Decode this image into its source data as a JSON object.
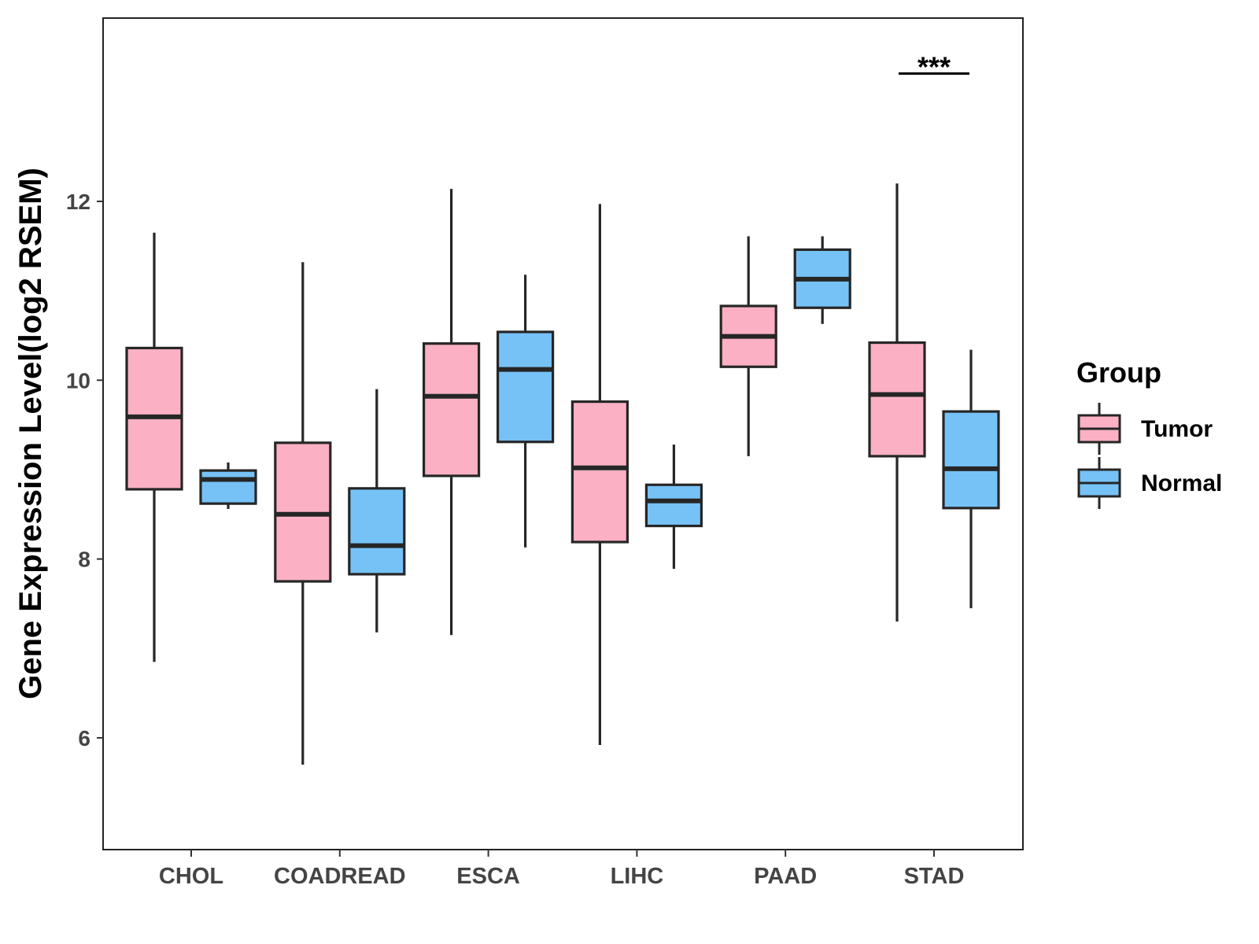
{
  "chart_data": {
    "type": "boxplot",
    "title": "",
    "xlabel": "",
    "ylabel": "Gene Expression Level(log2 RSEM)",
    "ylim": [
      4.75,
      14.05
    ],
    "yticks": [
      6,
      8,
      10,
      12
    ],
    "ytick_labels": [
      "6",
      "8",
      "10",
      "12"
    ],
    "grid": false,
    "categories": [
      "CHOL",
      "COADREAD",
      "ESCA",
      "LIHC",
      "PAAD",
      "STAD"
    ],
    "legend": {
      "title": "Group",
      "position": "right",
      "entries": [
        "Tumor",
        "Normal"
      ]
    },
    "series": [
      {
        "name": "Tumor",
        "color": "#FBB1C3",
        "boxes": [
          {
            "category": "CHOL",
            "whisker_low": 6.85,
            "q1": 8.78,
            "median": 9.59,
            "q3": 10.36,
            "whisker_high": 11.65
          },
          {
            "category": "COADREAD",
            "whisker_low": 5.7,
            "q1": 7.75,
            "median": 8.5,
            "q3": 9.3,
            "whisker_high": 11.32
          },
          {
            "category": "ESCA",
            "whisker_low": 7.15,
            "q1": 8.93,
            "median": 9.82,
            "q3": 10.41,
            "whisker_high": 12.14
          },
          {
            "category": "LIHC",
            "whisker_low": 5.92,
            "q1": 8.19,
            "median": 9.02,
            "q3": 9.76,
            "whisker_high": 11.97
          },
          {
            "category": "PAAD",
            "whisker_low": 9.15,
            "q1": 10.15,
            "median": 10.49,
            "q3": 10.83,
            "whisker_high": 11.61
          },
          {
            "category": "STAD",
            "whisker_low": 7.3,
            "q1": 9.15,
            "median": 9.84,
            "q3": 10.42,
            "whisker_high": 12.2
          }
        ]
      },
      {
        "name": "Normal",
        "color": "#76C2F7",
        "boxes": [
          {
            "category": "CHOL",
            "whisker_low": 8.56,
            "q1": 8.62,
            "median": 8.89,
            "q3": 8.99,
            "whisker_high": 9.08
          },
          {
            "category": "COADREAD",
            "whisker_low": 7.18,
            "q1": 7.83,
            "median": 8.15,
            "q3": 8.79,
            "whisker_high": 9.9
          },
          {
            "category": "ESCA",
            "whisker_low": 8.13,
            "q1": 9.31,
            "median": 10.12,
            "q3": 10.54,
            "whisker_high": 11.18
          },
          {
            "category": "LIHC",
            "whisker_low": 7.89,
            "q1": 8.37,
            "median": 8.65,
            "q3": 8.83,
            "whisker_high": 9.28
          },
          {
            "category": "PAAD",
            "whisker_low": 10.63,
            "q1": 10.81,
            "median": 11.13,
            "q3": 11.46,
            "whisker_high": 11.61
          },
          {
            "category": "STAD",
            "whisker_low": 7.45,
            "q1": 8.57,
            "median": 9.01,
            "q3": 9.65,
            "whisker_high": 10.34
          }
        ]
      }
    ],
    "annotations": [
      {
        "category": "STAD",
        "text": "***",
        "y": 13.43
      }
    ]
  },
  "colors": {
    "outline": "#262626",
    "frame": "#000000",
    "background": "#FFFFFF"
  }
}
